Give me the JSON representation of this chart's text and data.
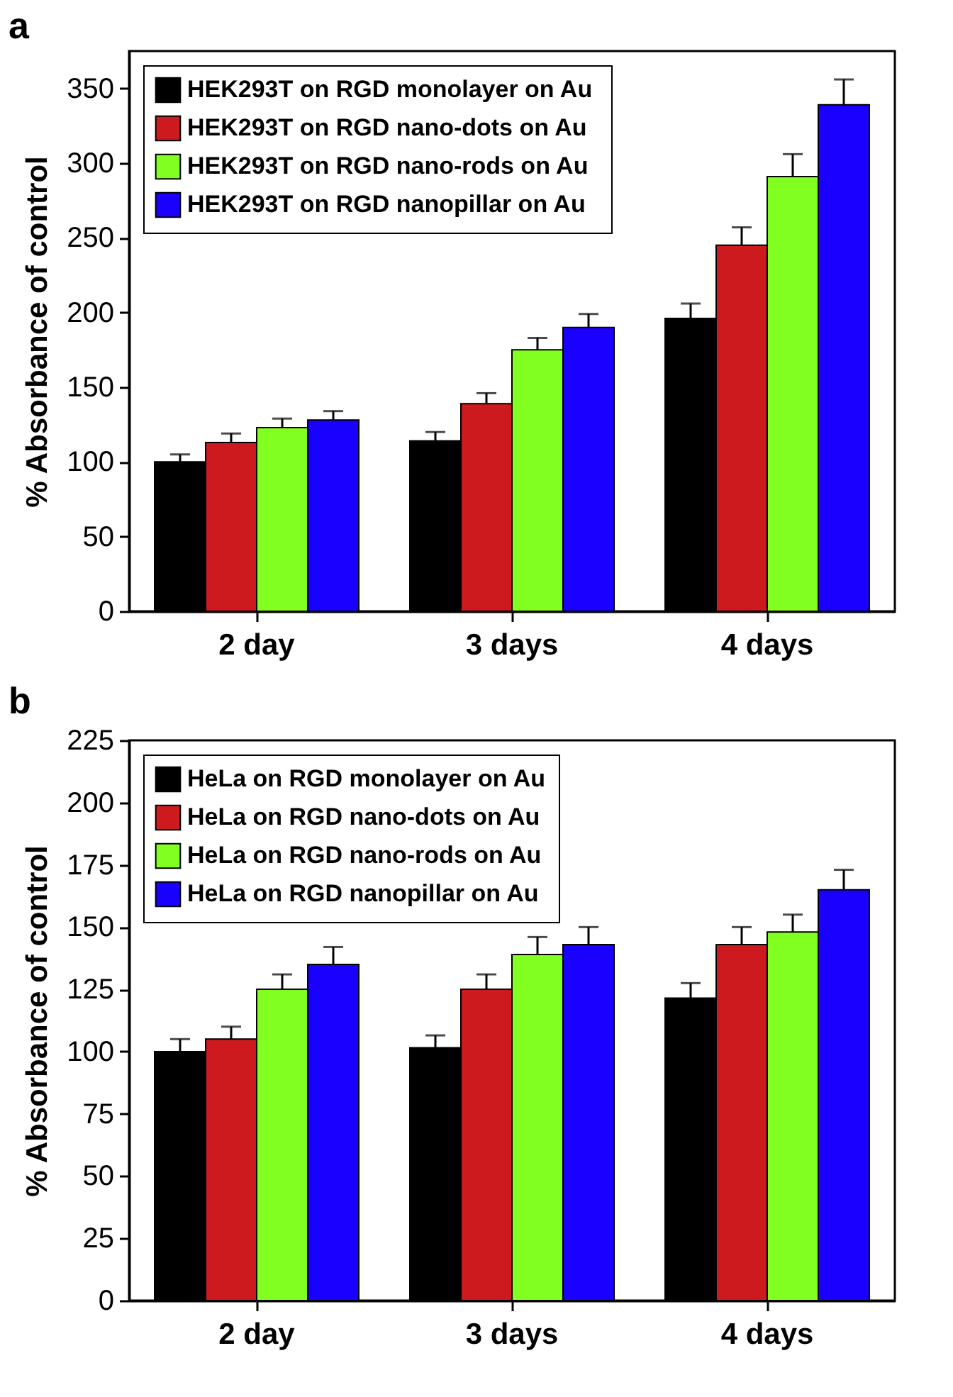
{
  "chart_data": [
    {
      "type": "bar",
      "title": "a",
      "ylabel": "% Absorbance of control",
      "categories": [
        "2 day",
        "3 days",
        "4 days"
      ],
      "series": [
        {
          "name": "HEK293T on  RGD monolayer on Au",
          "color": "#000000",
          "values": [
            100,
            114,
            196
          ],
          "errors": [
            5,
            6,
            10
          ]
        },
        {
          "name": "HEK293T on RGD nano-dots on Au",
          "color": "#cc1a1f",
          "values": [
            113,
            139,
            245
          ],
          "errors": [
            6,
            7,
            12
          ]
        },
        {
          "name": "HEK293T on RGD nano-rods on Au",
          "color": "#80ff20",
          "values": [
            123,
            175,
            291
          ],
          "errors": [
            6,
            8,
            15
          ]
        },
        {
          "name": "HEK293T on RGD nanopillar on Au",
          "color": "#1a00ff",
          "values": [
            128,
            190,
            339
          ],
          "errors": [
            6,
            9,
            17
          ]
        }
      ],
      "ylim": [
        0,
        375
      ],
      "yticks": [
        0,
        50,
        100,
        150,
        200,
        250,
        300,
        350
      ],
      "legend": "top left"
    },
    {
      "type": "bar",
      "title": "b",
      "ylabel": "% Absorbance of control",
      "categories": [
        "2 day",
        "3 days",
        "4 days"
      ],
      "series": [
        {
          "name": "HeLa on RGD monolayer on Au",
          "color": "#000000",
          "values": [
            100,
            101.5,
            121.5
          ],
          "errors": [
            5,
            5,
            6
          ]
        },
        {
          "name": "HeLa on RGD nano-dots on Au",
          "color": "#cc1a1f",
          "values": [
            105,
            125,
            143
          ],
          "errors": [
            5,
            6,
            7
          ]
        },
        {
          "name": "HeLa on RGD nano-rods on Au",
          "color": "#80ff20",
          "values": [
            125,
            139,
            148
          ],
          "errors": [
            6,
            7,
            7
          ]
        },
        {
          "name": "HeLa on RGD nanopillar on Au",
          "color": "#1a00ff",
          "values": [
            135,
            143,
            165
          ],
          "errors": [
            7,
            7,
            8
          ]
        }
      ],
      "ylim": [
        0,
        225
      ],
      "yticks": [
        0,
        25,
        50,
        75,
        100,
        125,
        150,
        175,
        200,
        225
      ],
      "legend": "top left"
    }
  ]
}
